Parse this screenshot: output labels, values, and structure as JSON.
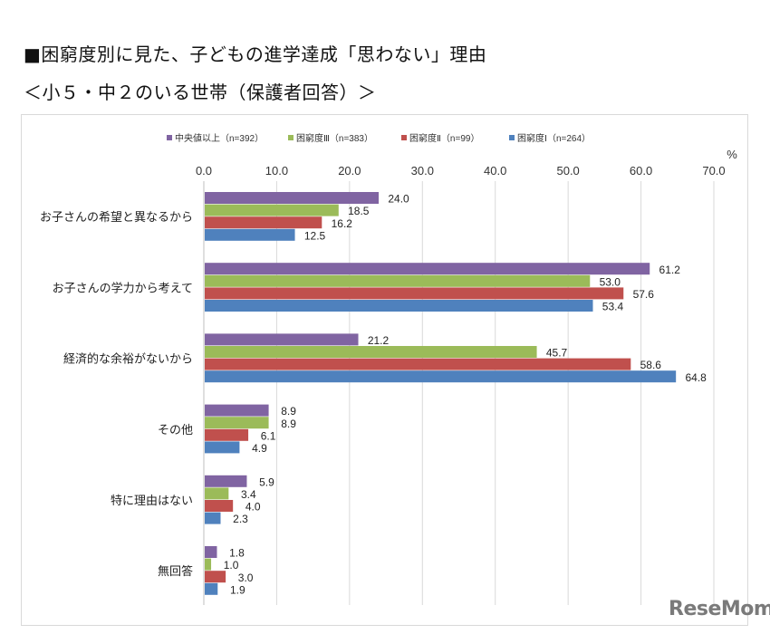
{
  "header": {
    "title": "■困窮度別に見た、子どもの進学達成「思わない」理由",
    "subtitle": "＜小５・中２のいる世帯（保護者回答）＞"
  },
  "watermark": "ReseMom",
  "chart_data": {
    "type": "bar",
    "orientation": "horizontal",
    "title": "困窮度別に見た、子どもの進学達成「思わない」理由",
    "subtitle": "＜小５・中２のいる世帯（保護者回答）＞",
    "xlabel": "",
    "unit_label": "%",
    "xlim": [
      0,
      70
    ],
    "x_ticks": [
      "0.0",
      "10.0",
      "20.0",
      "30.0",
      "40.0",
      "50.0",
      "60.0",
      "70.0"
    ],
    "x_tick_values": [
      0,
      10,
      20,
      30,
      40,
      50,
      60,
      70
    ],
    "grid": true,
    "legend_position": "top",
    "categories": [
      "お子さんの希望と異なるから",
      "お子さんの学力から考えて",
      "経済的な余裕がないから",
      "その他",
      "特に理由はない",
      "無回答"
    ],
    "series": [
      {
        "name": "中央値以上（n=392）",
        "color": "#8064a2",
        "values": [
          24.0,
          61.2,
          21.2,
          8.9,
          5.9,
          1.8
        ],
        "labels": [
          "24.0",
          "61.2",
          "21.2",
          "8.9",
          "5.9",
          "1.8"
        ]
      },
      {
        "name": "困窮度Ⅲ（n=383）",
        "color": "#9bbb59",
        "values": [
          18.5,
          53.0,
          45.7,
          8.9,
          3.4,
          1.0
        ],
        "labels": [
          "18.5",
          "53.0",
          "45.7",
          "8.9",
          "3.4",
          "1.0"
        ]
      },
      {
        "name": "困窮度Ⅱ（n=99）",
        "color": "#c0504d",
        "values": [
          16.2,
          57.6,
          58.6,
          6.1,
          4.0,
          3.0
        ],
        "labels": [
          "16.2",
          "57.6",
          "58.6",
          "6.1",
          "4.0",
          "3.0"
        ]
      },
      {
        "name": "困窮度Ⅰ（n=264）",
        "color": "#4f81bd",
        "values": [
          12.5,
          53.4,
          64.8,
          4.9,
          2.3,
          1.9
        ],
        "labels": [
          "12.5",
          "53.4",
          "64.8",
          "4.9",
          "2.3",
          "1.9"
        ]
      }
    ]
  }
}
